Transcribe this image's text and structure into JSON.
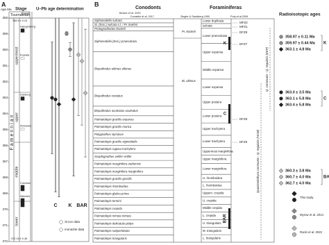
{
  "panel_a": {
    "label": "A",
    "axis_title": "Age Ma",
    "stage_header": "Stage",
    "event_header": "Event",
    "title": "U–Pb age determination",
    "tournaisian": "Tournaisian",
    "top_boundary": "358.9 ± 0.15",
    "bottom_boundary": "372.15 ± 0.46",
    "stage": "Famennian",
    "substages": [
      "uppermost",
      "upper",
      "middle",
      "lower"
    ],
    "events": [
      "Hangenberg",
      "Kowala",
      "Dasberg",
      "Annulata",
      "Condroz",
      "Nehden"
    ],
    "ylim": [
      358,
      372
    ],
    "yticks": [
      358,
      359,
      360,
      361,
      362,
      363,
      364,
      365,
      366,
      367,
      368,
      369,
      370,
      371,
      372
    ],
    "columns": [
      "C",
      "K",
      "BAR"
    ],
    "legend": [
      {
        "label": "zircon data",
        "shape": "circle"
      },
      {
        "label": "monazite data",
        "shape": "diamond"
      }
    ]
  },
  "panel_b": {
    "label": "B",
    "conodonts_header": "Conodonts",
    "sources": [
      "Becker et al. 2020",
      "Corradini et al. 2017",
      "Ziegler & Sandberg 1990",
      "Poty et al.2006"
    ],
    "becker_zones": [
      "Siphonodella sulcata",
      "Si. (Eos.) sulcata s.l. / Pr. kuehni",
      "Protognathodus kockeli",
      "Siphonodella (Eos.) praesulcata",
      "Bispathodus ultimus ultimus",
      "Bispathodus costatus",
      "Bispathodus aculeatus aculeatus",
      "Palmatolepis gracilis expansa",
      "Palmatolepis gracilis manca",
      "Polygnathus styriacus",
      "Palmatolepis gracilis sigmoidalis",
      "Palmatolepis rugosa trachytera",
      "Scaphignathus velifer velifer",
      "Palmatolepis marginifera utahensis",
      "Palmatolepis marginifera marginifera",
      "Palmatolepis gracilis gracilis",
      "Palmatolepis rhomboidea",
      "Palmatolepis glabra prima",
      "Palmatolepis termini",
      "Palmatolepis crepida",
      "Palmatolepis minuta minuta",
      "Palmatolepis delicatula platys",
      "Palmatolepis subperlobata",
      "Palmatolepis triangularis"
    ],
    "corradini_zones": [
      "Pr. kockeli",
      "Bi. ultimus"
    ],
    "ziegler_zones": [
      "Lower duplicata",
      "sulcata",
      "Lower praesulcata",
      "Upper expansa",
      "Middle expansa",
      "Lower expansa",
      "Upper postera",
      "Lower postera",
      "Upper trachytera",
      "Lower trachytera",
      "Uppermost marginifera",
      "Upper marginifera",
      "Lower marginifera",
      "U. rhomboidea",
      "L. rhomboidea",
      "Uppem. crepida",
      "U. crepida",
      "Middle crepida",
      "L. crepida",
      "U. triangularis",
      "M. triangularis",
      "L. triangularis"
    ],
    "foraminifera_header": "Foraminiferas",
    "foraminifera_zones": [
      "MFZ2",
      "MFZ1",
      "DFZ8",
      "DFZ7",
      "DFZ6",
      "DFZ5"
    ],
    "foraminifera_ranges": [
      "Quasiendothyra communis - Q. regularis (HCM)",
      "Q. communis - Q. regularis (EEP)"
    ],
    "ages_header": "Radioisotopic ages",
    "groups": [
      {
        "name": "K",
        "ages": [
          {
            "age": 358.97,
            "error": 0.11,
            "label": "358.97 ± 0.11 Ma",
            "source": 1,
            "mineral": 0
          },
          {
            "age": 359.97,
            "error": 0.44,
            "label": "359.97 ± 0.44 Ma",
            "source": 1,
            "mineral": 0
          },
          {
            "age": 363.1,
            "error": 4.8,
            "label": "363.1 ± 4.8 Ma",
            "source": 0,
            "mineral": 1
          }
        ]
      },
      {
        "name": "C",
        "ages": [
          {
            "age": 363.0,
            "error": 3.5,
            "label": "363.0 ± 3.5 Ma",
            "source": 0,
            "mineral": 0
          },
          {
            "age": 363.1,
            "error": 5.8,
            "label": "363.1 ± 5.8 Ma",
            "source": 0,
            "mineral": 0
          },
          {
            "age": 363.4,
            "error": 5.8,
            "label": "363.4 ± 5.8 Ma",
            "source": 0,
            "mineral": 1
          }
        ]
      },
      {
        "name": "BAR",
        "ages": [
          {
            "age": 360.3,
            "error": 3.8,
            "label": "360.3 ± 3.8 Ma",
            "source": 2,
            "mineral": 1
          },
          {
            "age": 360.7,
            "error": 4.0,
            "label": "360.7 ± 4.0 Ma",
            "source": 2,
            "mineral": 1
          },
          {
            "age": 362.7,
            "error": 4.0,
            "label": "362.7 ± 4.0 Ma",
            "source": 2,
            "mineral": 1
          }
        ]
      }
    ],
    "legend": [
      {
        "label": "This study",
        "color": "#222222"
      },
      {
        "label": "Myrow et al. 2014",
        "color": "#8a8a8a"
      },
      {
        "label": "Racki et al. 2022",
        "color": "#b8b8b8"
      }
    ]
  }
}
